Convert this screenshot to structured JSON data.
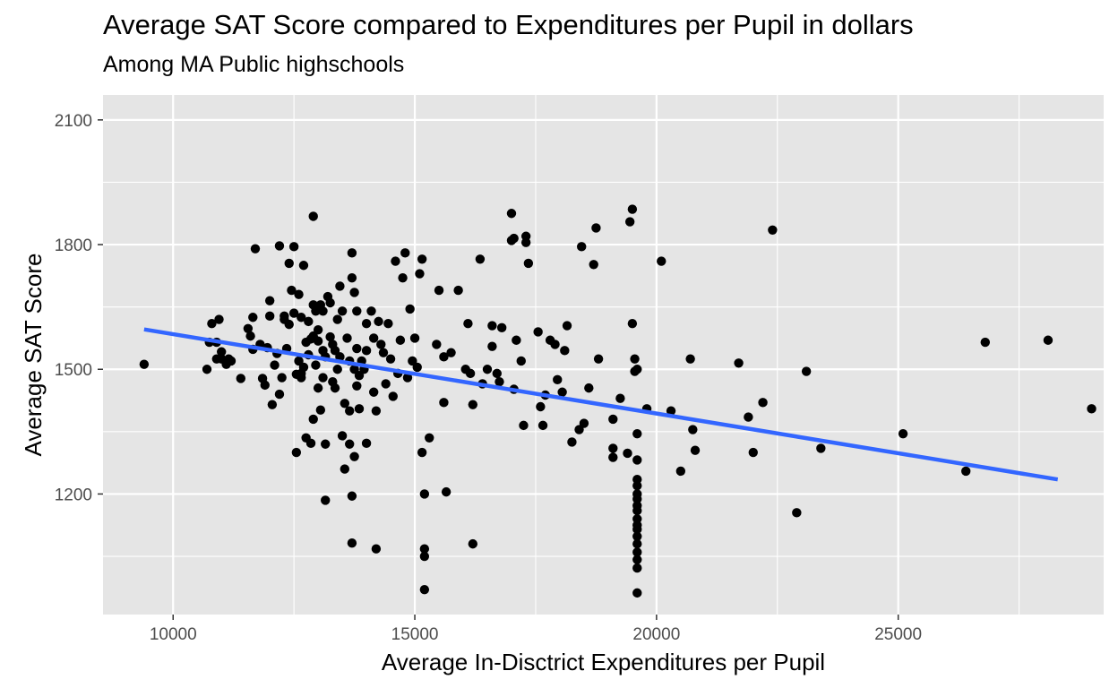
{
  "chart_data": {
    "type": "scatter",
    "title": "Average SAT Score compared to Expenditures per Pupil in dollars",
    "subtitle": "Among MA Public highschools",
    "xlabel": "Average In-Disctrict Expenditures per Pupil",
    "ylabel": "Average SAT Score",
    "xlim": [
      8550,
      29250
    ],
    "ylim": [
      910,
      2160
    ],
    "x_ticks": [
      10000,
      15000,
      20000,
      25000
    ],
    "x_tick_labels": [
      "10000",
      "15000",
      "20000",
      "25000"
    ],
    "y_ticks": [
      1200,
      1500,
      1800,
      2100
    ],
    "y_tick_labels": [
      "1200",
      "1500",
      "1800",
      "2100"
    ],
    "grid": true,
    "legend": "none",
    "colors": {
      "panel_background": "#e5e5e5",
      "grid": "#ffffff",
      "points": "#000000",
      "trend_line": "#3366ff",
      "tick_text": "#4d4d4d"
    },
    "trend_line": {
      "x": [
        9400,
        28300
      ],
      "y": [
        1596,
        1235
      ]
    },
    "points": [
      [
        9400,
        1512
      ],
      [
        10700,
        1500
      ],
      [
        10750,
        1565
      ],
      [
        10800,
        1610
      ],
      [
        10900,
        1565
      ],
      [
        10950,
        1620
      ],
      [
        11000,
        1542
      ],
      [
        10900,
        1525
      ],
      [
        11000,
        1525
      ],
      [
        11100,
        1512
      ],
      [
        11150,
        1525
      ],
      [
        11200,
        1520
      ],
      [
        11400,
        1478
      ],
      [
        11550,
        1598
      ],
      [
        11600,
        1580
      ],
      [
        11650,
        1625
      ],
      [
        11700,
        1790
      ],
      [
        11650,
        1548
      ],
      [
        11800,
        1560
      ],
      [
        11850,
        1478
      ],
      [
        11900,
        1462
      ],
      [
        11950,
        1552
      ],
      [
        12000,
        1628
      ],
      [
        12000,
        1665
      ],
      [
        12050,
        1415
      ],
      [
        12100,
        1510
      ],
      [
        12150,
        1538
      ],
      [
        12200,
        1797
      ],
      [
        12200,
        1440
      ],
      [
        12250,
        1480
      ],
      [
        12300,
        1620
      ],
      [
        12300,
        1628
      ],
      [
        12350,
        1550
      ],
      [
        12400,
        1755
      ],
      [
        12400,
        1608
      ],
      [
        12450,
        1690
      ],
      [
        12500,
        1795
      ],
      [
        12500,
        1635
      ],
      [
        12550,
        1488
      ],
      [
        12600,
        1520
      ],
      [
        12600,
        1680
      ],
      [
        12650,
        1480
      ],
      [
        12650,
        1625
      ],
      [
        12700,
        1750
      ],
      [
        12700,
        1505
      ],
      [
        12550,
        1300
      ],
      [
        12650,
        1490
      ],
      [
        12750,
        1565
      ],
      [
        12750,
        1335
      ],
      [
        12800,
        1535
      ],
      [
        12850,
        1573
      ],
      [
        12850,
        1322
      ],
      [
        12900,
        1580
      ],
      [
        12900,
        1380
      ],
      [
        12950,
        1510
      ],
      [
        12800,
        1615
      ],
      [
        12900,
        1655
      ],
      [
        12950,
        1640
      ],
      [
        13000,
        1568
      ],
      [
        13000,
        1455
      ],
      [
        13050,
        1402
      ],
      [
        13000,
        1595
      ],
      [
        13100,
        1480
      ],
      [
        12900,
        1868
      ],
      [
        13050,
        1655
      ],
      [
        13100,
        1640
      ],
      [
        13100,
        1545
      ],
      [
        13150,
        1530
      ],
      [
        13200,
        1675
      ],
      [
        13150,
        1320
      ],
      [
        13150,
        1185
      ],
      [
        13250,
        1660
      ],
      [
        13250,
        1578
      ],
      [
        13300,
        1560
      ],
      [
        13300,
        1470
      ],
      [
        13350,
        1545
      ],
      [
        13350,
        1455
      ],
      [
        13400,
        1500
      ],
      [
        13400,
        1620
      ],
      [
        13450,
        1700
      ],
      [
        13450,
        1530
      ],
      [
        13500,
        1640
      ],
      [
        13500,
        1340
      ],
      [
        13550,
        1418
      ],
      [
        13550,
        1260
      ],
      [
        13600,
        1575
      ],
      [
        13650,
        1520
      ],
      [
        13650,
        1320
      ],
      [
        13650,
        1400
      ],
      [
        13700,
        1780
      ],
      [
        13700,
        1720
      ],
      [
        13700,
        1195
      ],
      [
        13700,
        1082
      ],
      [
        13750,
        1500
      ],
      [
        13750,
        1290
      ],
      [
        13750,
        1685
      ],
      [
        13800,
        1640
      ],
      [
        13800,
        1550
      ],
      [
        13800,
        1460
      ],
      [
        13850,
        1405
      ],
      [
        13850,
        1485
      ],
      [
        13900,
        1520
      ],
      [
        13950,
        1500
      ],
      [
        14000,
        1610
      ],
      [
        14000,
        1545
      ],
      [
        14000,
        1322
      ],
      [
        14100,
        1640
      ],
      [
        14150,
        1575
      ],
      [
        14150,
        1445
      ],
      [
        14200,
        1400
      ],
      [
        14200,
        1068
      ],
      [
        14250,
        1615
      ],
      [
        14300,
        1560
      ],
      [
        14350,
        1540
      ],
      [
        14400,
        1465
      ],
      [
        14450,
        1610
      ],
      [
        14500,
        1525
      ],
      [
        14550,
        1435
      ],
      [
        14600,
        1760
      ],
      [
        14650,
        1490
      ],
      [
        14700,
        1570
      ],
      [
        14750,
        1720
      ],
      [
        14800,
        1780
      ],
      [
        14850,
        1480
      ],
      [
        14900,
        1645
      ],
      [
        14950,
        1520
      ],
      [
        15000,
        1575
      ],
      [
        15050,
        1505
      ],
      [
        15100,
        1730
      ],
      [
        15150,
        1765
      ],
      [
        15150,
        1300
      ],
      [
        15200,
        1200
      ],
      [
        15200,
        1068
      ],
      [
        15200,
        1050
      ],
      [
        15200,
        970
      ],
      [
        15300,
        1335
      ],
      [
        15450,
        1560
      ],
      [
        15500,
        1690
      ],
      [
        15600,
        1530
      ],
      [
        15600,
        1420
      ],
      [
        15650,
        1205
      ],
      [
        15750,
        1540
      ],
      [
        15900,
        1690
      ],
      [
        16050,
        1500
      ],
      [
        16100,
        1610
      ],
      [
        16150,
        1490
      ],
      [
        16200,
        1415
      ],
      [
        16200,
        1080
      ],
      [
        16350,
        1765
      ],
      [
        16400,
        1465
      ],
      [
        16500,
        1500
      ],
      [
        16600,
        1555
      ],
      [
        16600,
        1605
      ],
      [
        16700,
        1490
      ],
      [
        16750,
        1470
      ],
      [
        16800,
        1600
      ],
      [
        17000,
        1810
      ],
      [
        17000,
        1875
      ],
      [
        17050,
        1815
      ],
      [
        17050,
        1452
      ],
      [
        17100,
        1570
      ],
      [
        17200,
        1520
      ],
      [
        17250,
        1365
      ],
      [
        17300,
        1805
      ],
      [
        17300,
        1820
      ],
      [
        17350,
        1755
      ],
      [
        17550,
        1590
      ],
      [
        17600,
        1410
      ],
      [
        17650,
        1365
      ],
      [
        17700,
        1438
      ],
      [
        17800,
        1570
      ],
      [
        17900,
        1560
      ],
      [
        17950,
        1475
      ],
      [
        18050,
        1445
      ],
      [
        18100,
        1545
      ],
      [
        18150,
        1605
      ],
      [
        18250,
        1325
      ],
      [
        18400,
        1355
      ],
      [
        18450,
        1795
      ],
      [
        18500,
        1370
      ],
      [
        18600,
        1455
      ],
      [
        18700,
        1752
      ],
      [
        18750,
        1840
      ],
      [
        18800,
        1525
      ],
      [
        19100,
        1310
      ],
      [
        19100,
        1288
      ],
      [
        19100,
        1380
      ],
      [
        19250,
        1430
      ],
      [
        19400,
        1298
      ],
      [
        19450,
        1855
      ],
      [
        19500,
        1885
      ],
      [
        19500,
        1610
      ],
      [
        19550,
        1525
      ],
      [
        19550,
        1495
      ],
      [
        19600,
        1500
      ],
      [
        19600,
        1345
      ],
      [
        19600,
        1282
      ],
      [
        19600,
        1235
      ],
      [
        19600,
        1220
      ],
      [
        19600,
        1200
      ],
      [
        19600,
        1188
      ],
      [
        19600,
        1172
      ],
      [
        19600,
        1160
      ],
      [
        19600,
        1140
      ],
      [
        19600,
        1125
      ],
      [
        19600,
        1115
      ],
      [
        19600,
        1098
      ],
      [
        19600,
        1080
      ],
      [
        19600,
        1060
      ],
      [
        19600,
        1042
      ],
      [
        19600,
        1022
      ],
      [
        19600,
        962
      ],
      [
        19800,
        1405
      ],
      [
        20100,
        1760
      ],
      [
        20300,
        1400
      ],
      [
        20500,
        1255
      ],
      [
        20700,
        1525
      ],
      [
        20750,
        1355
      ],
      [
        20800,
        1305
      ],
      [
        21700,
        1515
      ],
      [
        21900,
        1385
      ],
      [
        22000,
        1300
      ],
      [
        22200,
        1420
      ],
      [
        22400,
        1835
      ],
      [
        22900,
        1155
      ],
      [
        23100,
        1495
      ],
      [
        23400,
        1310
      ],
      [
        25100,
        1345
      ],
      [
        26400,
        1255
      ],
      [
        26800,
        1565
      ],
      [
        28100,
        1570
      ],
      [
        29000,
        1405
      ]
    ]
  }
}
